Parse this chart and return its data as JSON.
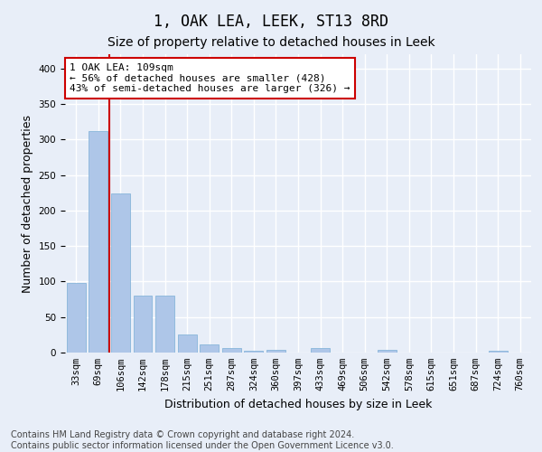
{
  "title": "1, OAK LEA, LEEK, ST13 8RD",
  "subtitle": "Size of property relative to detached houses in Leek",
  "xlabel": "Distribution of detached houses by size in Leek",
  "ylabel": "Number of detached properties",
  "categories": [
    "33sqm",
    "69sqm",
    "106sqm",
    "142sqm",
    "178sqm",
    "215sqm",
    "251sqm",
    "287sqm",
    "324sqm",
    "360sqm",
    "397sqm",
    "433sqm",
    "469sqm",
    "506sqm",
    "542sqm",
    "578sqm",
    "615sqm",
    "651sqm",
    "687sqm",
    "724sqm",
    "760sqm"
  ],
  "values": [
    98,
    312,
    224,
    80,
    80,
    25,
    12,
    6,
    3,
    4,
    0,
    6,
    0,
    0,
    4,
    0,
    0,
    0,
    0,
    3,
    0
  ],
  "bar_color": "#aec6e8",
  "bar_edge_color": "#7aaed6",
  "vline_x_index": 1.5,
  "vline_color": "#cc0000",
  "annotation_text": "1 OAK LEA: 109sqm\n← 56% of detached houses are smaller (428)\n43% of semi-detached houses are larger (326) →",
  "annotation_box_facecolor": "#ffffff",
  "annotation_box_edgecolor": "#cc0000",
  "ylim": [
    0,
    420
  ],
  "yticks": [
    0,
    50,
    100,
    150,
    200,
    250,
    300,
    350,
    400
  ],
  "footer": "Contains HM Land Registry data © Crown copyright and database right 2024.\nContains public sector information licensed under the Open Government Licence v3.0.",
  "background_color": "#e8eef8",
  "plot_bg_color": "#e8eef8",
  "grid_color": "#ffffff",
  "title_fontsize": 12,
  "subtitle_fontsize": 10,
  "axis_label_fontsize": 9,
  "tick_fontsize": 7.5,
  "footer_fontsize": 7,
  "annot_fontsize": 8
}
